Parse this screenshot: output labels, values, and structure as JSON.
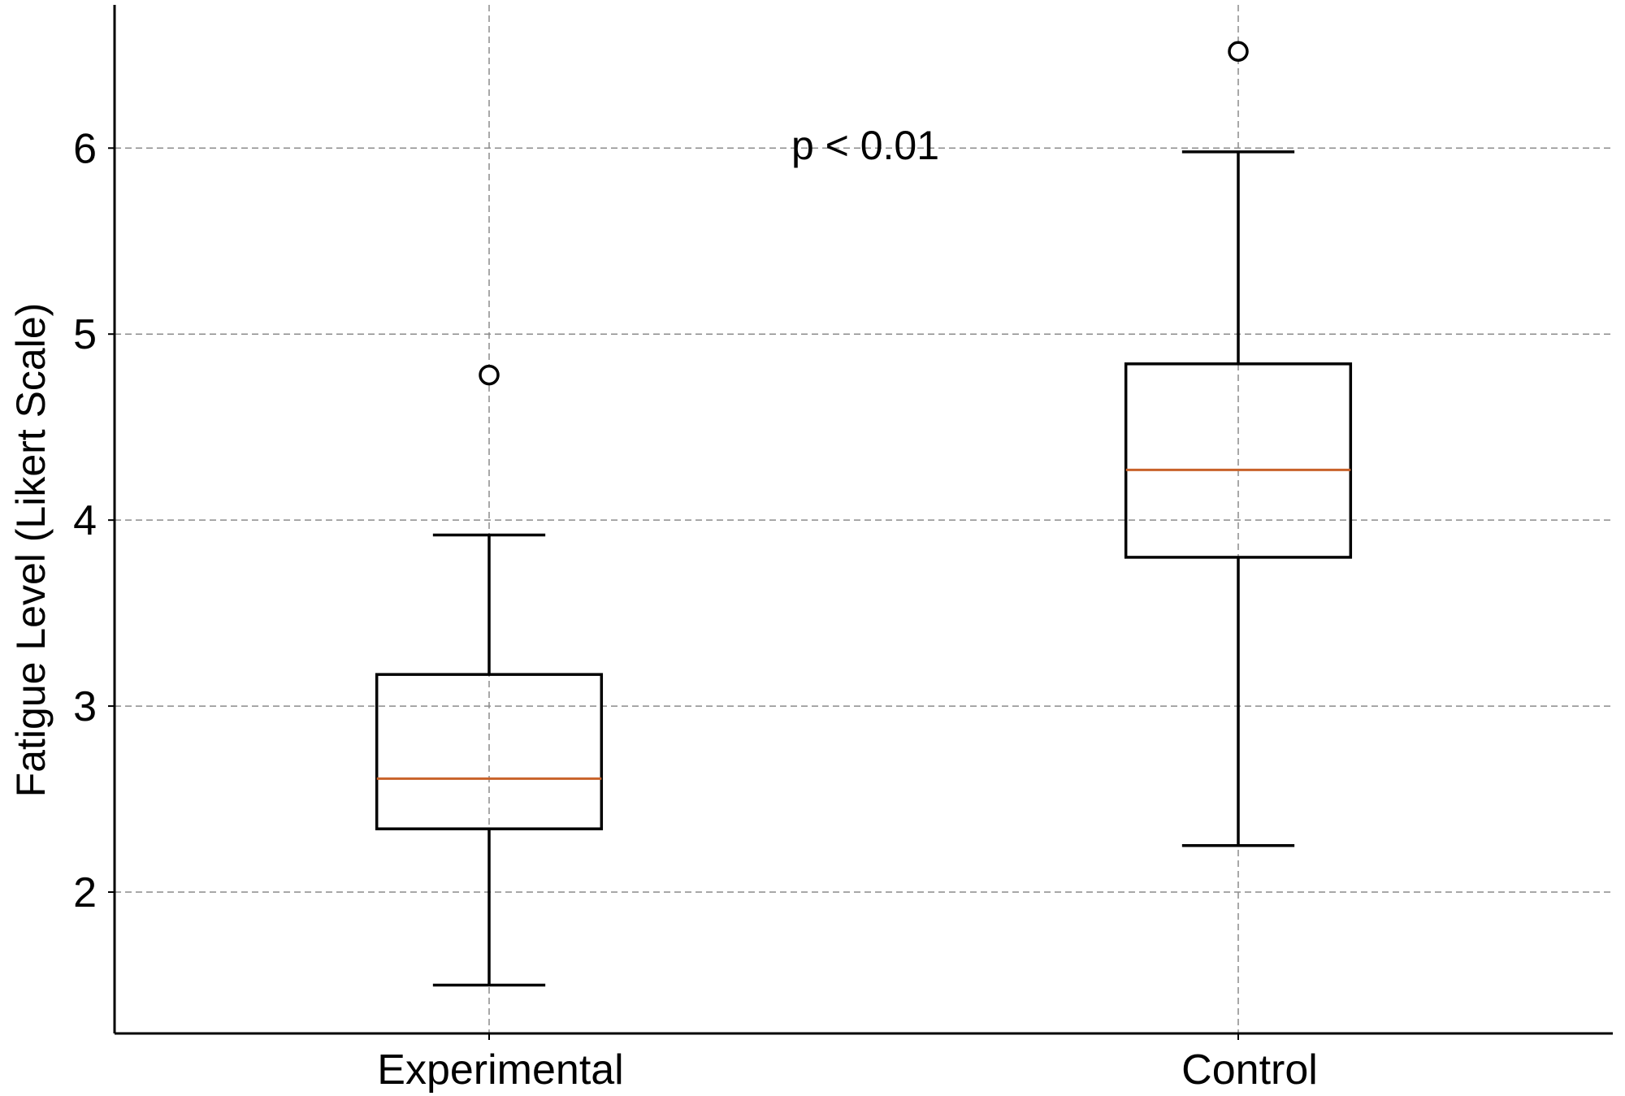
{
  "chart_data": {
    "type": "box",
    "title": "",
    "xlabel": "",
    "ylabel": "Fatigue Level (Likert Scale)",
    "categories": [
      "Experimental",
      "Control"
    ],
    "series": [
      {
        "name": "Experimental",
        "whisker_low": 1.5,
        "q1": 2.34,
        "median": 2.61,
        "q3": 3.17,
        "whisker_high": 3.92,
        "outliers": [
          4.78
        ]
      },
      {
        "name": "Control",
        "whisker_low": 2.25,
        "q1": 3.8,
        "median": 4.27,
        "q3": 4.84,
        "whisker_high": 5.98,
        "outliers": [
          6.52
        ]
      }
    ],
    "yticks": [
      2,
      3,
      4,
      5,
      6
    ],
    "ytick_labels": [
      "2",
      "3",
      "4",
      "5",
      "6"
    ],
    "ylim": [
      1.24,
      6.77
    ],
    "xlim": [
      0.5,
      2.5
    ],
    "grid": true,
    "annotation": "p < 0.01",
    "colors": {
      "box": "#000000",
      "median": "#c8622a",
      "grid": "#8c8c8c"
    }
  }
}
